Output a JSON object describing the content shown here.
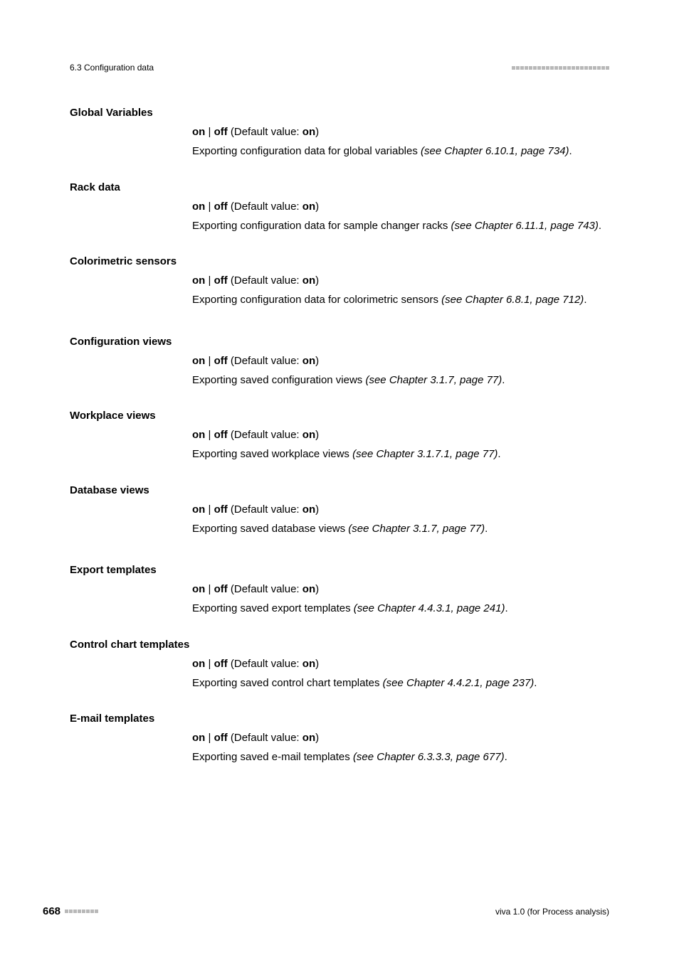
{
  "header": {
    "breadcrumb": "6.3 Configuration data",
    "dot_count": 23,
    "dot_color": "#b8b8b8"
  },
  "sections": [
    {
      "title": "Global Variables",
      "opt_a": "on",
      "sep1": " | ",
      "opt_b": "off",
      "def_prefix": " (Default value: ",
      "def_value": "on",
      "def_suffix": ")",
      "desc_pre": "Exporting configuration data for global variables ",
      "ref": "(see Chapter 6.10.1, page 734)",
      "desc_post": "."
    },
    {
      "title": "Rack data",
      "opt_a": "on",
      "sep1": " | ",
      "opt_b": "off",
      "def_prefix": " (Default value: ",
      "def_value": "on",
      "def_suffix": ")",
      "desc_pre": "Exporting configuration data for sample changer racks ",
      "ref": "(see Chapter 6.11.1, page 743)",
      "desc_post": "."
    },
    {
      "title": "Colorimetric sensors",
      "opt_a": "on",
      "sep1": " | ",
      "opt_b": "off",
      "def_prefix": " (Default value: ",
      "def_value": "on",
      "def_suffix": ")",
      "desc_pre": "Exporting configuration data for colorimetric sensors ",
      "ref": "(see Chapter 6.8.1, page 712)",
      "desc_post": ".",
      "gap_after": true
    },
    {
      "title": "Configuration views",
      "opt_a": "on",
      "sep1": " | ",
      "opt_b": "off",
      "def_prefix": " (Default value: ",
      "def_value": "on",
      "def_suffix": ")",
      "desc_pre": "Exporting saved configuration views ",
      "ref": "(see Chapter 3.1.7, page 77)",
      "desc_post": "."
    },
    {
      "title": "Workplace views",
      "opt_a": "on",
      "sep1": " | ",
      "opt_b": "off",
      "def_prefix": " (Default value: ",
      "def_value": "on",
      "def_suffix": ")",
      "desc_pre": "Exporting saved workplace views ",
      "ref": "(see Chapter 3.1.7.1, page 77)",
      "desc_post": "."
    },
    {
      "title": "Database views",
      "opt_a": "on",
      "sep1": " | ",
      "opt_b": "off",
      "def_prefix": " (Default value: ",
      "def_value": "on",
      "def_suffix": ")",
      "desc_pre": "Exporting saved database views ",
      "ref": "(see Chapter 3.1.7, page 77)",
      "desc_post": ".",
      "gap_after": true
    },
    {
      "title": "Export templates",
      "opt_a": "on",
      "sep1": " | ",
      "opt_b": "off",
      "def_prefix": " (Default value: ",
      "def_value": "on",
      "def_suffix": ")",
      "desc_pre": "Exporting saved export templates ",
      "ref": "(see Chapter 4.4.3.1, page 241)",
      "desc_post": "."
    },
    {
      "title": "Control chart templates",
      "opt_a": "on",
      "sep1": " | ",
      "opt_b": "off",
      "def_prefix": " (Default value: ",
      "def_value": "on",
      "def_suffix": ")",
      "desc_pre": "Exporting saved control chart templates ",
      "ref": "(see Chapter 4.4.2.1, page 237)",
      "desc_post": "."
    },
    {
      "title": "E-mail templates",
      "opt_a": "on",
      "sep1": " | ",
      "opt_b": "off",
      "def_prefix": " (Default value: ",
      "def_value": "on",
      "def_suffix": ")",
      "desc_pre": "Exporting saved e-mail templates ",
      "ref": "(see Chapter 6.3.3.3, page 677)",
      "desc_post": "."
    }
  ],
  "footer": {
    "page_number": "668",
    "dot_count": 8,
    "dot_color": "#b8b8b8",
    "right_text": "viva 1.0 (for Process analysis)"
  }
}
